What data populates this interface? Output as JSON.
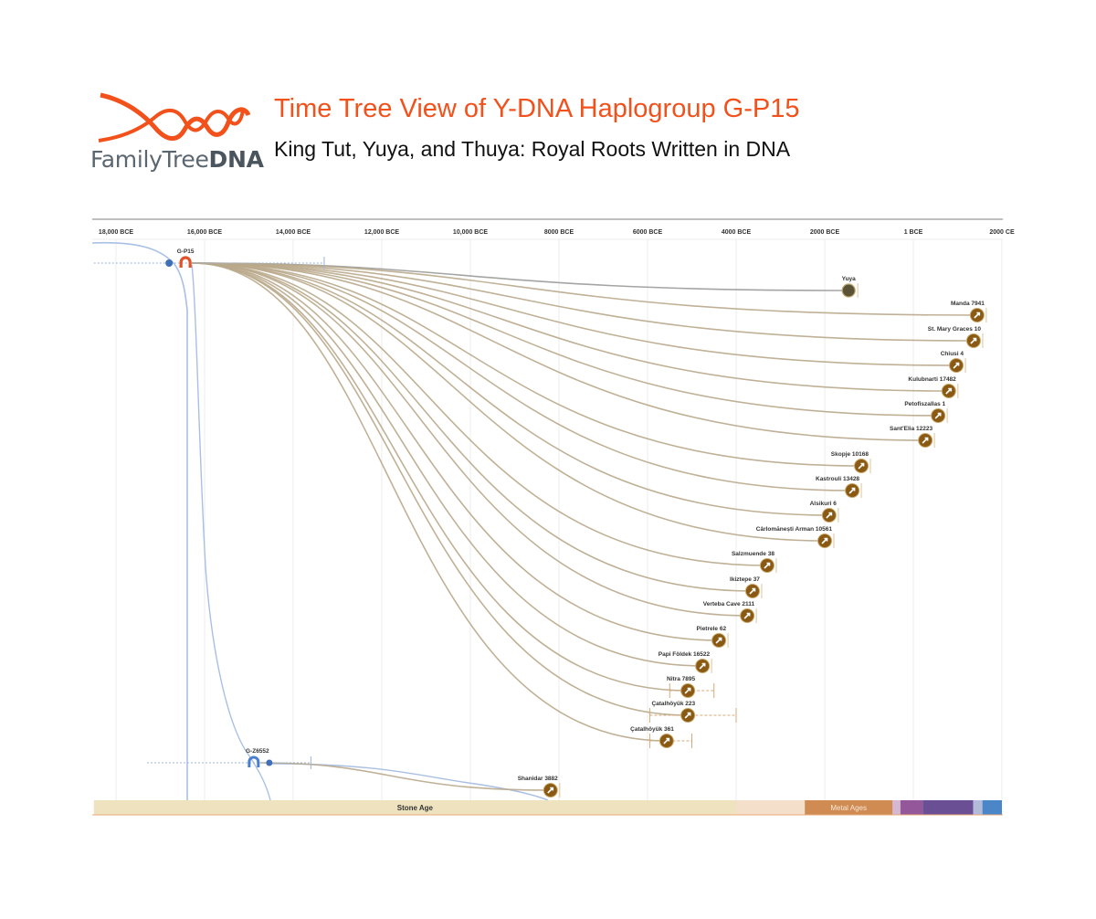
{
  "header": {
    "logo_text_light": "FamilyTree",
    "logo_text_bold": "DNA",
    "title": "Time Tree View of Y-DNA Haplogroup G-P15",
    "subtitle": "King Tut, Yuya, and Thuya: Royal Roots Written in DNA"
  },
  "colors": {
    "brand": "#f2511b",
    "branch": "#b9a98b",
    "node": "#8a5a14",
    "haplo_red": "#e0522a",
    "haplo_blue": "#3f6fb8",
    "lineage": "#a9c0e4"
  },
  "chart_data": {
    "type": "timeline-tree",
    "title": "Time Tree View of Y-DNA Haplogroup G-P15",
    "x_unit": "year (negative = BCE)",
    "xlim": [
      -18500,
      2000
    ],
    "ticks": [
      {
        "value": -18000,
        "label": "18,000 BCE"
      },
      {
        "value": -16000,
        "label": "16,000 BCE"
      },
      {
        "value": -14000,
        "label": "14,000 BCE"
      },
      {
        "value": -12000,
        "label": "12,000 BCE"
      },
      {
        "value": -10000,
        "label": "10,000 BCE"
      },
      {
        "value": -8000,
        "label": "8000 BCE"
      },
      {
        "value": -6000,
        "label": "6000 BCE"
      },
      {
        "value": -4000,
        "label": "4000 BCE"
      },
      {
        "value": -2000,
        "label": "2000 BCE"
      },
      {
        "value": 0,
        "label": "1 BCE"
      },
      {
        "value": 2000,
        "label": "2000 CE"
      }
    ],
    "haplogroups": [
      {
        "name": "G-P15",
        "year": -16430,
        "range": [
          -18500,
          -13300
        ]
      },
      {
        "name": "G-Z6552",
        "year": -14890,
        "range": [
          -17300,
          -13600
        ]
      }
    ],
    "samples": [
      {
        "name": "Yuya",
        "year": -1460,
        "parent": "G-P15",
        "type": "royal"
      },
      {
        "name": "Manda 7941",
        "year": 1440,
        "parent": "G-P15"
      },
      {
        "name": "St. Mary Graces 10",
        "year": 1360,
        "parent": "G-P15"
      },
      {
        "name": "Chiusi 4",
        "year": 970,
        "parent": "G-P15"
      },
      {
        "name": "Kulubnarti 17482",
        "year": 800,
        "parent": "G-P15"
      },
      {
        "name": "Petofiszallas 1",
        "year": 560,
        "parent": "G-P15"
      },
      {
        "name": "Sant'Elia 12223",
        "year": 270,
        "parent": "G-P15"
      },
      {
        "name": "Skopje 10168",
        "year": -1175,
        "parent": "G-P15"
      },
      {
        "name": "Kastrouli 13428",
        "year": -1380,
        "parent": "G-P15"
      },
      {
        "name": "Alsikuri 6",
        "year": -1900,
        "parent": "G-P15"
      },
      {
        "name": "Cârlomănești Arman 10561",
        "year": -2000,
        "parent": "G-P15"
      },
      {
        "name": "Salzmuende 38",
        "year": -3300,
        "parent": "G-P15"
      },
      {
        "name": "Ikiztepe 37",
        "year": -3630,
        "parent": "G-P15"
      },
      {
        "name": "Verteba Cave 2111",
        "year": -3750,
        "parent": "G-P15"
      },
      {
        "name": "Pietrele 62",
        "year": -4390,
        "parent": "G-P15"
      },
      {
        "name": "Papi Földek 16522",
        "year": -4760,
        "parent": "G-P15"
      },
      {
        "name": "Nitra 7895",
        "year": -5090,
        "parent": "G-P15",
        "range": [
          -5500,
          -4500
        ]
      },
      {
        "name": "Çatalhöyük 223",
        "year": -5090,
        "parent": "G-P15",
        "range": [
          -5950,
          -4000
        ]
      },
      {
        "name": "Çatalhöyük 361",
        "year": -5570,
        "parent": "G-P15",
        "range": [
          -5950,
          -5000
        ]
      },
      {
        "name": "Shanidar 3882",
        "year": -8190,
        "parent": "G-Z6552"
      }
    ],
    "eras": [
      {
        "label": "Stone Age",
        "from": -18500,
        "to": -4000,
        "color": "#efe3bf"
      },
      {
        "label": "",
        "from": -4000,
        "to": -2450,
        "color": "#e6b98a",
        "hatched": true
      },
      {
        "label": "Metal Ages",
        "from": -2450,
        "to": -470,
        "color": "#cf8b52"
      },
      {
        "label": "",
        "from": -470,
        "to": -290,
        "color": "#a2609c",
        "hatched": true
      },
      {
        "label": "",
        "from": -290,
        "to": 210,
        "color": "#93579a"
      },
      {
        "label": "",
        "from": 210,
        "to": 1350,
        "color": "#6a4f94"
      },
      {
        "label": "",
        "from": 1350,
        "to": 1560,
        "color": "#5668b0",
        "hatched": true
      },
      {
        "label": "",
        "from": 1560,
        "to": 2000,
        "color": "#4a86c8"
      }
    ]
  }
}
